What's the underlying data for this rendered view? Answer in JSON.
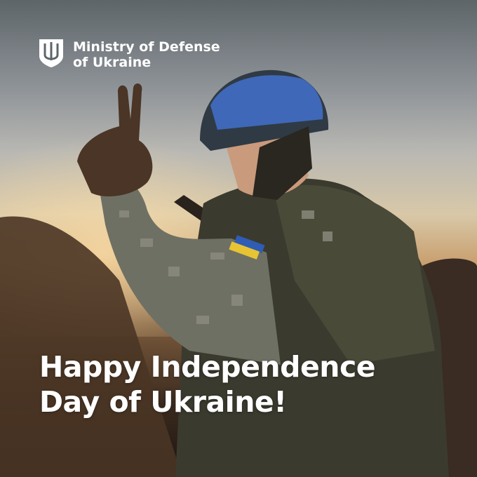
{
  "logo": {
    "line1": "Ministry of Defense",
    "line2": "of Ukraine",
    "icon": "trident-shield-icon"
  },
  "headline": {
    "line1": "Happy Independence",
    "line2": "Day of Ukraine!"
  },
  "colors": {
    "text": "#ffffff",
    "helmet": "#3f68b8",
    "flag_blue": "#2f5db5",
    "flag_yellow": "#e6c433"
  }
}
